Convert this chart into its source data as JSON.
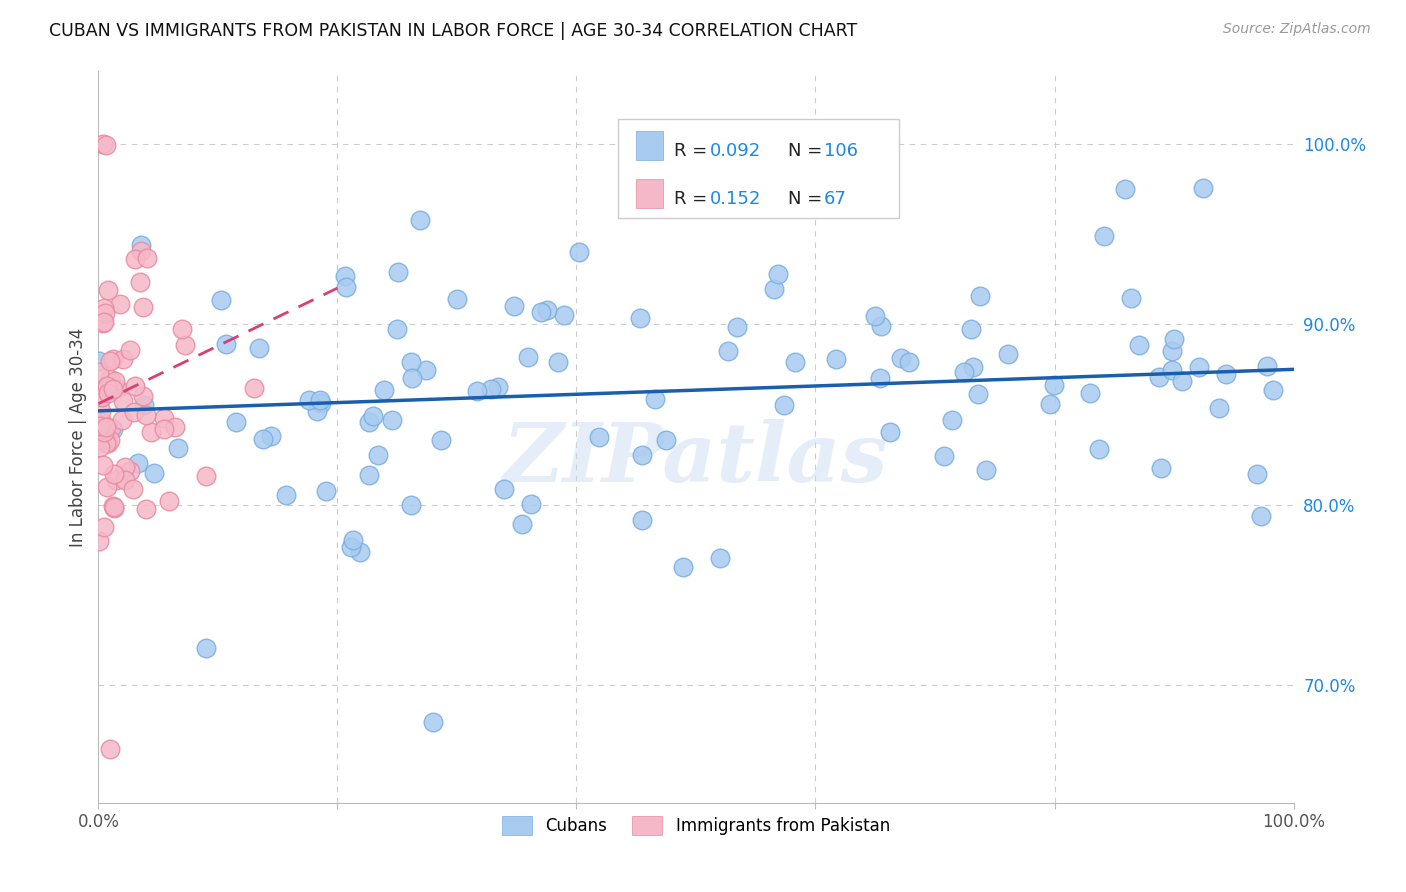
{
  "title": "CUBAN VS IMMIGRANTS FROM PAKISTAN IN LABOR FORCE | AGE 30-34 CORRELATION CHART",
  "source": "Source: ZipAtlas.com",
  "ylabel": "In Labor Force | Age 30-34",
  "watermark": "ZIPatlas",
  "xlim": [
    0.0,
    1.0
  ],
  "ylim": [
    0.635,
    1.04
  ],
  "x_ticks": [
    0.0,
    0.2,
    0.4,
    0.6,
    0.8,
    1.0
  ],
  "y_ticks_right": [
    1.0,
    0.9,
    0.8,
    0.7
  ],
  "y_tick_labels_right": [
    "100.0%",
    "90.0%",
    "80.0%",
    "70.0%"
  ],
  "blue_color": "#A8CBF0",
  "blue_edge_color": "#7AAEE0",
  "pink_color": "#F5B8C8",
  "pink_edge_color": "#E88AA0",
  "blue_line_color": "#1A5FAD",
  "pink_line_color": "#D94070",
  "legend_R_blue": "0.092",
  "legend_N_blue": "106",
  "legend_R_pink": "0.152",
  "legend_N_pink": "67",
  "legend_color_value": "#1E88E5",
  "title_color": "#111111",
  "right_axis_color": "#1E88E5",
  "grid_color": "#CCCCCC",
  "background_color": "#FFFFFF",
  "blue_trend_x": [
    0.0,
    1.0
  ],
  "blue_trend_y": [
    0.852,
    0.875
  ],
  "pink_trend_x": [
    0.0,
    0.2
  ],
  "pink_trend_y": [
    0.856,
    0.92
  ]
}
